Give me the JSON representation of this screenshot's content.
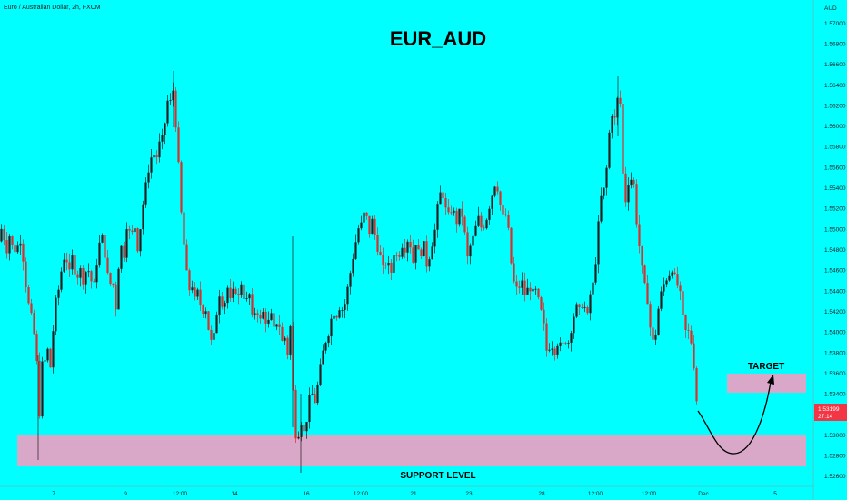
{
  "header": {
    "symbol_line": "Euro / Australian Dollar, 2h, FXCM",
    "currency": "AUD"
  },
  "chart_data": {
    "type": "candlestick",
    "title": "EUR_AUD",
    "y_axis": {
      "range": [
        1.26,
        1.571
      ],
      "ticks": [
        "1.57000",
        "1.56800",
        "1.56600",
        "1.56400",
        "1.56200",
        "1.56000",
        "1.55800",
        "1.55600",
        "1.55400",
        "1.55200",
        "1.55000",
        "1.54800",
        "1.54600",
        "1.54400",
        "1.54200",
        "1.54000",
        "1.53800",
        "1.53600",
        "1.53400",
        "1.53200",
        "1.53000",
        "1.52800",
        "1.52600"
      ]
    },
    "x_axis": {
      "ticks": [
        "7",
        "9",
        "12:00",
        "14",
        "16",
        "12:00",
        "21",
        "23",
        "28",
        "12:00",
        "12:00",
        "Dec",
        "5"
      ]
    },
    "current_price": {
      "price": "1.53199",
      "countdown": "27:14"
    },
    "colors": {
      "background": "#00ffff",
      "up": "#1e1e1e",
      "down": "#d9302b",
      "zone": "#d9a7c7",
      "label_bg": "#f23645"
    },
    "zones": [
      {
        "name": "support",
        "label": "SUPPORT LEVEL",
        "from": 1.527,
        "to": 1.5295
      },
      {
        "name": "target",
        "label": "TARGET",
        "from": 1.5337,
        "to": 1.5354
      }
    ],
    "price_path": [
      [
        0,
        1.5488
      ],
      [
        3,
        1.5512
      ],
      [
        6,
        1.547
      ],
      [
        10,
        1.5495
      ],
      [
        14,
        1.5482
      ],
      [
        18,
        1.5478
      ],
      [
        22,
        1.5492
      ],
      [
        26,
        1.5468
      ],
      [
        30,
        1.5432
      ],
      [
        34,
        1.5418
      ],
      [
        38,
        1.5395
      ],
      [
        41,
        1.5365
      ],
      [
        44,
        1.5312
      ],
      [
        47,
        1.538
      ],
      [
        50,
        1.537
      ],
      [
        53,
        1.5385
      ],
      [
        56,
        1.5362
      ],
      [
        60,
        1.5425
      ],
      [
        64,
        1.5438
      ],
      [
        68,
        1.5462
      ],
      [
        72,
        1.5478
      ],
      [
        76,
        1.5455
      ],
      [
        80,
        1.5475
      ],
      [
        84,
        1.545
      ],
      [
        88,
        1.5462
      ],
      [
        92,
        1.5448
      ],
      [
        96,
        1.5465
      ],
      [
        100,
        1.545
      ],
      [
        104,
        1.5445
      ],
      [
        108,
        1.548
      ],
      [
        112,
        1.5495
      ],
      [
        116,
        1.5472
      ],
      [
        120,
        1.5445
      ],
      [
        124,
        1.545
      ],
      [
        128,
        1.542
      ],
      [
        132,
        1.549
      ],
      [
        136,
        1.547
      ],
      [
        140,
        1.5508
      ],
      [
        144,
        1.549
      ],
      [
        148,
        1.5505
      ],
      [
        152,
        1.5478
      ],
      [
        156,
        1.5515
      ],
      [
        160,
        1.554
      ],
      [
        164,
        1.556
      ],
      [
        168,
        1.5575
      ],
      [
        172,
        1.5568
      ],
      [
        176,
        1.5585
      ],
      [
        180,
        1.559
      ],
      [
        184,
        1.5625
      ],
      [
        187,
        1.562
      ],
      [
        190,
        1.564
      ],
      [
        193,
        1.5608
      ],
      [
        196,
        1.557
      ],
      [
        199,
        1.552
      ],
      [
        202,
        1.549
      ],
      [
        205,
        1.546
      ],
      [
        208,
        1.544
      ],
      [
        211,
        1.5448
      ],
      [
        214,
        1.543
      ],
      [
        218,
        1.544
      ],
      [
        222,
        1.5418
      ],
      [
        226,
        1.5425
      ],
      [
        230,
        1.54
      ],
      [
        234,
        1.5385
      ],
      [
        238,
        1.5415
      ],
      [
        242,
        1.544
      ],
      [
        246,
        1.542
      ],
      [
        250,
        1.5445
      ],
      [
        254,
        1.5428
      ],
      [
        258,
        1.5445
      ],
      [
        262,
        1.5432
      ],
      [
        266,
        1.545
      ],
      [
        270,
        1.5425
      ],
      [
        274,
        1.544
      ],
      [
        278,
        1.541
      ],
      [
        282,
        1.5425
      ],
      [
        286,
        1.541
      ],
      [
        290,
        1.542
      ],
      [
        294,
        1.5405
      ],
      [
        298,
        1.5418
      ],
      [
        302,
        1.54
      ],
      [
        306,
        1.5415
      ],
      [
        310,
        1.539
      ],
      [
        314,
        1.5395
      ],
      [
        318,
        1.537
      ],
      [
        321,
        1.544
      ],
      [
        323,
        1.531
      ],
      [
        326,
        1.5298
      ],
      [
        329,
        1.5302
      ],
      [
        332,
        1.5315
      ],
      [
        335,
        1.53
      ],
      [
        338,
        1.5318
      ],
      [
        342,
        1.5345
      ],
      [
        346,
        1.533
      ],
      [
        350,
        1.535
      ],
      [
        354,
        1.5375
      ],
      [
        358,
        1.539
      ],
      [
        362,
        1.54
      ],
      [
        366,
        1.542
      ],
      [
        370,
        1.5415
      ],
      [
        374,
        1.5425
      ],
      [
        378,
        1.542
      ],
      [
        382,
        1.544
      ],
      [
        386,
        1.546
      ],
      [
        390,
        1.548
      ],
      [
        394,
        1.55
      ],
      [
        398,
        1.5505
      ],
      [
        402,
        1.552
      ],
      [
        406,
        1.5495
      ],
      [
        410,
        1.551
      ],
      [
        414,
        1.5485
      ],
      [
        418,
        1.5475
      ],
      [
        422,
        1.546
      ],
      [
        426,
        1.547
      ],
      [
        430,
        1.5455
      ],
      [
        434,
        1.548
      ],
      [
        438,
        1.547
      ],
      [
        442,
        1.5485
      ],
      [
        446,
        1.548
      ],
      [
        450,
        1.5495
      ],
      [
        454,
        1.5465
      ],
      [
        458,
        1.549
      ],
      [
        462,
        1.547
      ],
      [
        466,
        1.5488
      ],
      [
        470,
        1.5462
      ],
      [
        474,
        1.548
      ],
      [
        478,
        1.5495
      ],
      [
        482,
        1.5525
      ],
      [
        486,
        1.554
      ],
      [
        490,
        1.552
      ],
      [
        494,
        1.5512
      ],
      [
        498,
        1.5522
      ],
      [
        502,
        1.5505
      ],
      [
        506,
        1.5518
      ],
      [
        510,
        1.551
      ],
      [
        514,
        1.547
      ],
      [
        518,
        1.5485
      ],
      [
        522,
        1.5495
      ],
      [
        526,
        1.5512
      ],
      [
        530,
        1.55
      ],
      [
        534,
        1.5505
      ],
      [
        538,
        1.552
      ],
      [
        542,
        1.5535
      ],
      [
        546,
        1.5548
      ],
      [
        550,
        1.5525
      ],
      [
        554,
        1.551
      ],
      [
        558,
        1.5515
      ],
      [
        562,
        1.547
      ],
      [
        566,
        1.5445
      ],
      [
        570,
        1.544
      ],
      [
        574,
        1.545
      ],
      [
        578,
        1.5435
      ],
      [
        582,
        1.5445
      ],
      [
        586,
        1.5438
      ],
      [
        590,
        1.544
      ],
      [
        594,
        1.5425
      ],
      [
        598,
        1.541
      ],
      [
        602,
        1.5378
      ],
      [
        606,
        1.539
      ],
      [
        610,
        1.538
      ],
      [
        614,
        1.539
      ],
      [
        618,
        1.5385
      ],
      [
        622,
        1.5392
      ],
      [
        626,
        1.539
      ],
      [
        630,
        1.541
      ],
      [
        634,
        1.5425
      ],
      [
        638,
        1.542
      ],
      [
        642,
        1.543
      ],
      [
        646,
        1.5412
      ],
      [
        650,
        1.544
      ],
      [
        654,
        1.545
      ],
      [
        658,
        1.55
      ],
      [
        662,
        1.5535
      ],
      [
        666,
        1.554
      ],
      [
        670,
        1.559
      ],
      [
        674,
        1.5615
      ],
      [
        677,
        1.5605
      ],
      [
        680,
        1.563
      ],
      [
        683,
        1.562
      ],
      [
        686,
        1.554
      ],
      [
        689,
        1.5525
      ],
      [
        692,
        1.555
      ],
      [
        695,
        1.5548
      ],
      [
        698,
        1.5542
      ],
      [
        701,
        1.55
      ],
      [
        704,
        1.548
      ],
      [
        708,
        1.545
      ],
      [
        712,
        1.5435
      ],
      [
        716,
        1.54
      ],
      [
        720,
        1.5385
      ],
      [
        724,
        1.542
      ],
      [
        728,
        1.544
      ],
      [
        732,
        1.545
      ],
      [
        736,
        1.5455
      ],
      [
        740,
        1.5462
      ],
      [
        744,
        1.5448
      ],
      [
        748,
        1.544
      ],
      [
        752,
        1.541
      ],
      [
        756,
        1.5395
      ],
      [
        759,
        1.5405
      ],
      [
        762,
        1.5375
      ],
      [
        765,
        1.536
      ],
      [
        767,
        1.5325
      ],
      [
        769,
        1.532
      ]
    ]
  }
}
